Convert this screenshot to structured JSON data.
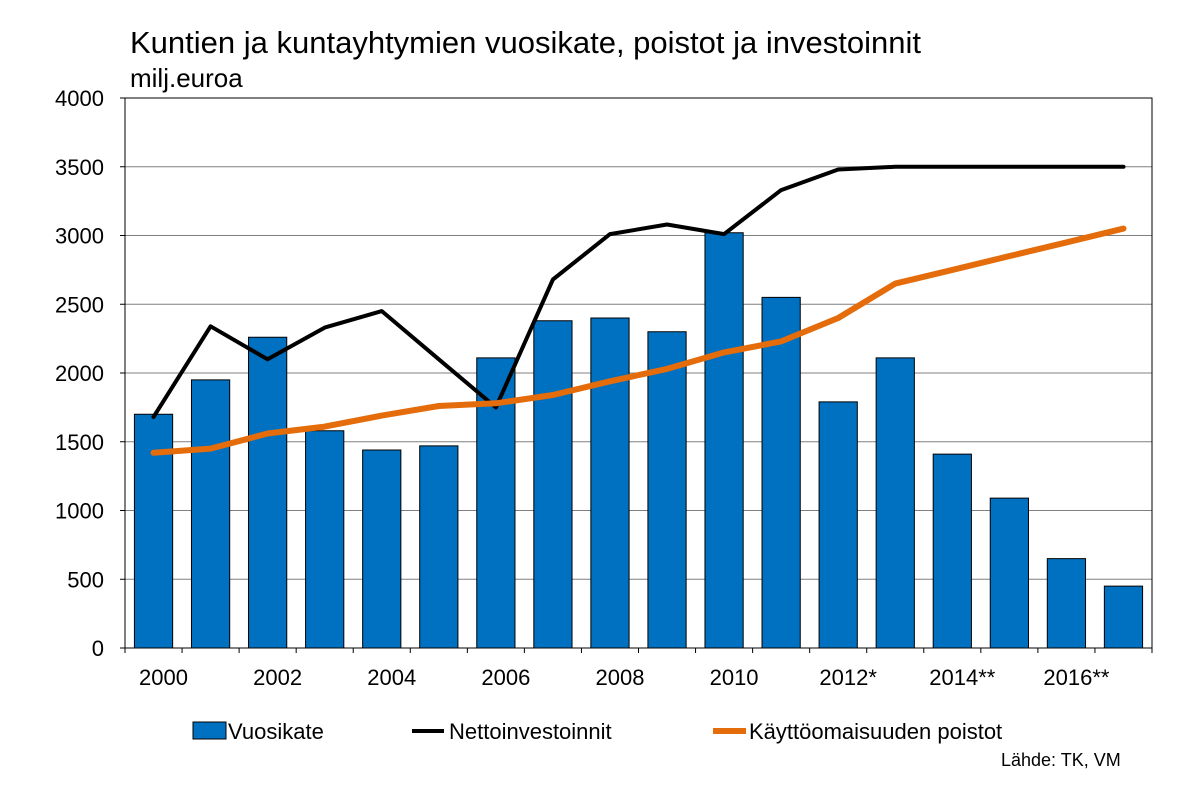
{
  "title": "Kuntien ja kuntayhtymien vuosikate, poistot ja investoinnit",
  "subtitle": "milj.euroa",
  "source": "Lähde: TK, VM",
  "colors": {
    "bar": "#0070C0",
    "bar_border": "#000000",
    "line_black": "#000000",
    "line_orange": "#E46C0A",
    "grid": "#808080"
  },
  "chart_data": {
    "type": "bar",
    "title": "Kuntien ja kuntayhtymien vuosikate, poistot ja investoinnit",
    "ylabel": "milj.euroa",
    "xlabel": "",
    "ylim": [
      0,
      4000
    ],
    "yticks": [
      0,
      500,
      1000,
      1500,
      2000,
      2500,
      3000,
      3500,
      4000
    ],
    "grid": true,
    "legend_position": "bottom",
    "categories": [
      "2000",
      "2001",
      "2002",
      "2003",
      "2004",
      "2005",
      "2006",
      "2007",
      "2008",
      "2009",
      "2010",
      "2011",
      "2012*",
      "2013",
      "2014**",
      "2015",
      "2016**",
      "2017"
    ],
    "xtick_labels": [
      "2000",
      "",
      "2002",
      "",
      "2004",
      "",
      "2006",
      "",
      "2008",
      "",
      "2010",
      "",
      "2012*",
      "",
      "2014**",
      "",
      "2016**",
      ""
    ],
    "series": [
      {
        "name": "Vuosikate",
        "type": "bar",
        "color": "#0070C0",
        "values": [
          1700,
          1950,
          2260,
          1580,
          1440,
          1470,
          2110,
          2380,
          2400,
          2300,
          3020,
          2550,
          1790,
          2110,
          1410,
          1090,
          650,
          450
        ]
      },
      {
        "name": "Nettoinvestoinnit",
        "type": "line",
        "color": "#000000",
        "values": [
          1680,
          2340,
          2100,
          2330,
          2450,
          2100,
          1750,
          2680,
          3010,
          3080,
          3010,
          3330,
          3480,
          3500,
          3500,
          3500,
          3500,
          3500
        ]
      },
      {
        "name": "Käyttöomaisuuden poistot",
        "type": "line",
        "color": "#E46C0A",
        "values": [
          1420,
          1450,
          1560,
          1610,
          1690,
          1760,
          1780,
          1840,
          1940,
          2030,
          2150,
          2230,
          2400,
          2650,
          2750,
          2850,
          2950,
          3050
        ]
      }
    ]
  }
}
